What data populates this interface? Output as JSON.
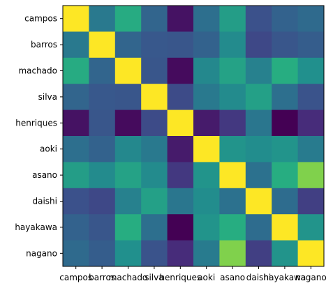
{
  "chart_data": {
    "type": "heatmap",
    "title": "",
    "xlabel": "",
    "ylabel": "",
    "colormap": "viridis",
    "value_range": [
      0,
      1
    ],
    "grid": false,
    "legend": "none",
    "labels": [
      "campos",
      "barros",
      "machado",
      "silva",
      "henriques",
      "aoki",
      "asano",
      "daishi",
      "hayakawa",
      "nagano"
    ],
    "matrix": [
      [
        1.0,
        0.41,
        0.62,
        0.33,
        0.05,
        0.37,
        0.56,
        0.25,
        0.32,
        0.35
      ],
      [
        0.41,
        1.0,
        0.33,
        0.28,
        0.27,
        0.32,
        0.48,
        0.22,
        0.27,
        0.3
      ],
      [
        0.62,
        0.33,
        1.0,
        0.27,
        0.03,
        0.47,
        0.58,
        0.44,
        0.63,
        0.5
      ],
      [
        0.33,
        0.28,
        0.27,
        1.0,
        0.23,
        0.41,
        0.48,
        0.57,
        0.37,
        0.26
      ],
      [
        0.05,
        0.27,
        0.03,
        0.23,
        1.0,
        0.08,
        0.17,
        0.4,
        0.0,
        0.13
      ],
      [
        0.37,
        0.32,
        0.47,
        0.41,
        0.08,
        1.0,
        0.52,
        0.49,
        0.52,
        0.42
      ],
      [
        0.56,
        0.48,
        0.58,
        0.48,
        0.17,
        0.52,
        1.0,
        0.38,
        0.63,
        0.81
      ],
      [
        0.25,
        0.22,
        0.44,
        0.57,
        0.4,
        0.49,
        0.38,
        1.0,
        0.36,
        0.19
      ],
      [
        0.32,
        0.27,
        0.63,
        0.37,
        0.0,
        0.52,
        0.63,
        0.36,
        1.0,
        0.52
      ],
      [
        0.35,
        0.3,
        0.5,
        0.26,
        0.13,
        0.42,
        0.81,
        0.19,
        0.52,
        1.0
      ]
    ]
  }
}
